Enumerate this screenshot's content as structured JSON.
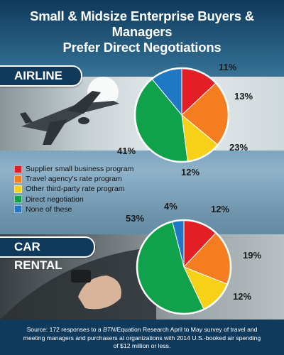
{
  "title_line1": "Small & Midsize Enterprise Buyers & Managers",
  "title_line2": "Prefer Direct Negotiations",
  "colors": {
    "Supplier small business program": "#e31e24",
    "Travel agency's rate program": "#f47d20",
    "Other third-party rate program": "#f7d117",
    "Direct negotiation": "#10a24a",
    "None of these": "#1f78c1"
  },
  "legend": [
    "Supplier small business program",
    "Travel agency's rate program",
    "Other third-party rate program",
    "Direct negotiation",
    "None of these"
  ],
  "source_prefix": "Source: 172 responses to a ",
  "source_italic": "BTN",
  "source_suffix": "/Equation Research April to May survey of travel and meeting managers and purchasers at organizations with 2014 U.S.-booked air spending of $12 million or less.",
  "chart_data": [
    {
      "type": "pie",
      "title": "AIRLINE",
      "categories": [
        "Supplier small business program",
        "Travel agency's rate program",
        "Other third-party rate program",
        "Direct negotiation",
        "None of these"
      ],
      "values": [
        13,
        23,
        12,
        41,
        11
      ],
      "labels": [
        "13%",
        "23%",
        "12%",
        "41%",
        "11%"
      ]
    },
    {
      "type": "pie",
      "title": "CAR RENTAL",
      "categories": [
        "Supplier small business program",
        "Travel agency's rate program",
        "Other third-party rate program",
        "Direct negotiation",
        "None of these"
      ],
      "values": [
        12,
        19,
        12,
        53,
        4
      ],
      "labels": [
        "12%",
        "19%",
        "12%",
        "53%",
        "4%"
      ]
    }
  ]
}
